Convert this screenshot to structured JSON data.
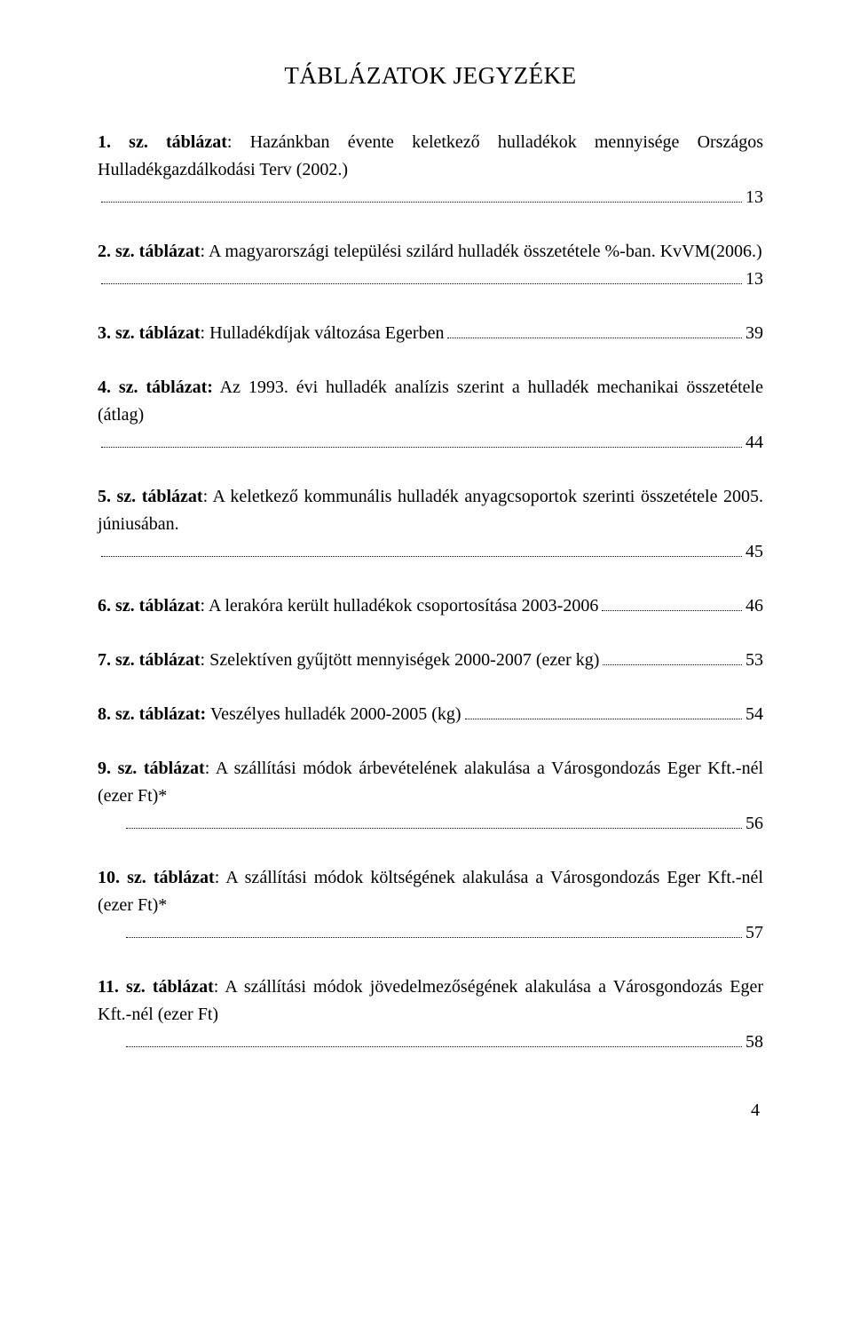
{
  "title": "TÁBLÁZATOK JEGYZÉKE",
  "entries": [
    {
      "lead": "1. sz. táblázat",
      "body": ": Hazánkban évente keletkező hulladékok mennyisége Országos Hulladékgazdálkodási Terv (2002.)",
      "page": "13",
      "wrap": true,
      "indent": false
    },
    {
      "lead": "2. sz. táblázat",
      "body": ": A magyarországi települési szilárd hulladék összetétele %-ban. KvVM(2006.)",
      "page": "13",
      "wrap": true,
      "indent": false
    },
    {
      "lead": "3. sz. táblázat",
      "body": ": Hulladékdíjak változása Egerben",
      "page": "39",
      "wrap": false,
      "indent": false
    },
    {
      "lead": "4. sz. táblázat:",
      "body": " Az 1993. évi hulladék analízis szerint a hulladék mechanikai összetétele (átlag)",
      "page": "44",
      "wrap": true,
      "indent": false
    },
    {
      "lead": "5. sz. táblázat",
      "body": ": A keletkező kommunális hulladék anyagcsoportok szerinti összetétele 2005. júniusában.",
      "page": "45",
      "wrap": true,
      "indent": false
    },
    {
      "lead": "6. sz. táblázat",
      "body": ": A lerakóra került hulladékok csoportosítása 2003-2006",
      "page": "46",
      "wrap": false,
      "indent": false
    },
    {
      "lead": "7. sz. táblázat",
      "body": ": Szelektíven gyűjtött mennyiségek 2000-2007 (ezer kg)",
      "page": "53",
      "wrap": false,
      "indent": false
    },
    {
      "lead": "8. sz. táblázat:",
      "body": " Veszélyes hulladék 2000-2005 (kg)",
      "page": "54",
      "wrap": false,
      "indent": false
    },
    {
      "lead": "9. sz. táblázat",
      "body": ": A szállítási módok árbevételének alakulása a Városgondozás Eger Kft.-nél (ezer Ft)*",
      "page": "56",
      "wrap": true,
      "indent": true
    },
    {
      "lead": "10. sz. táblázat",
      "body": ": A szállítási módok költségének alakulása a Városgondozás Eger Kft.-nél (ezer Ft)*",
      "page": "57",
      "wrap": true,
      "indent": true
    },
    {
      "lead": "11. sz. táblázat",
      "body": ": A szállítási módok jövedelmezőségének alakulása a Városgondozás Eger Kft.-nél (ezer Ft)",
      "page": "58",
      "wrap": true,
      "indent": true
    }
  ],
  "pageNumber": "4"
}
